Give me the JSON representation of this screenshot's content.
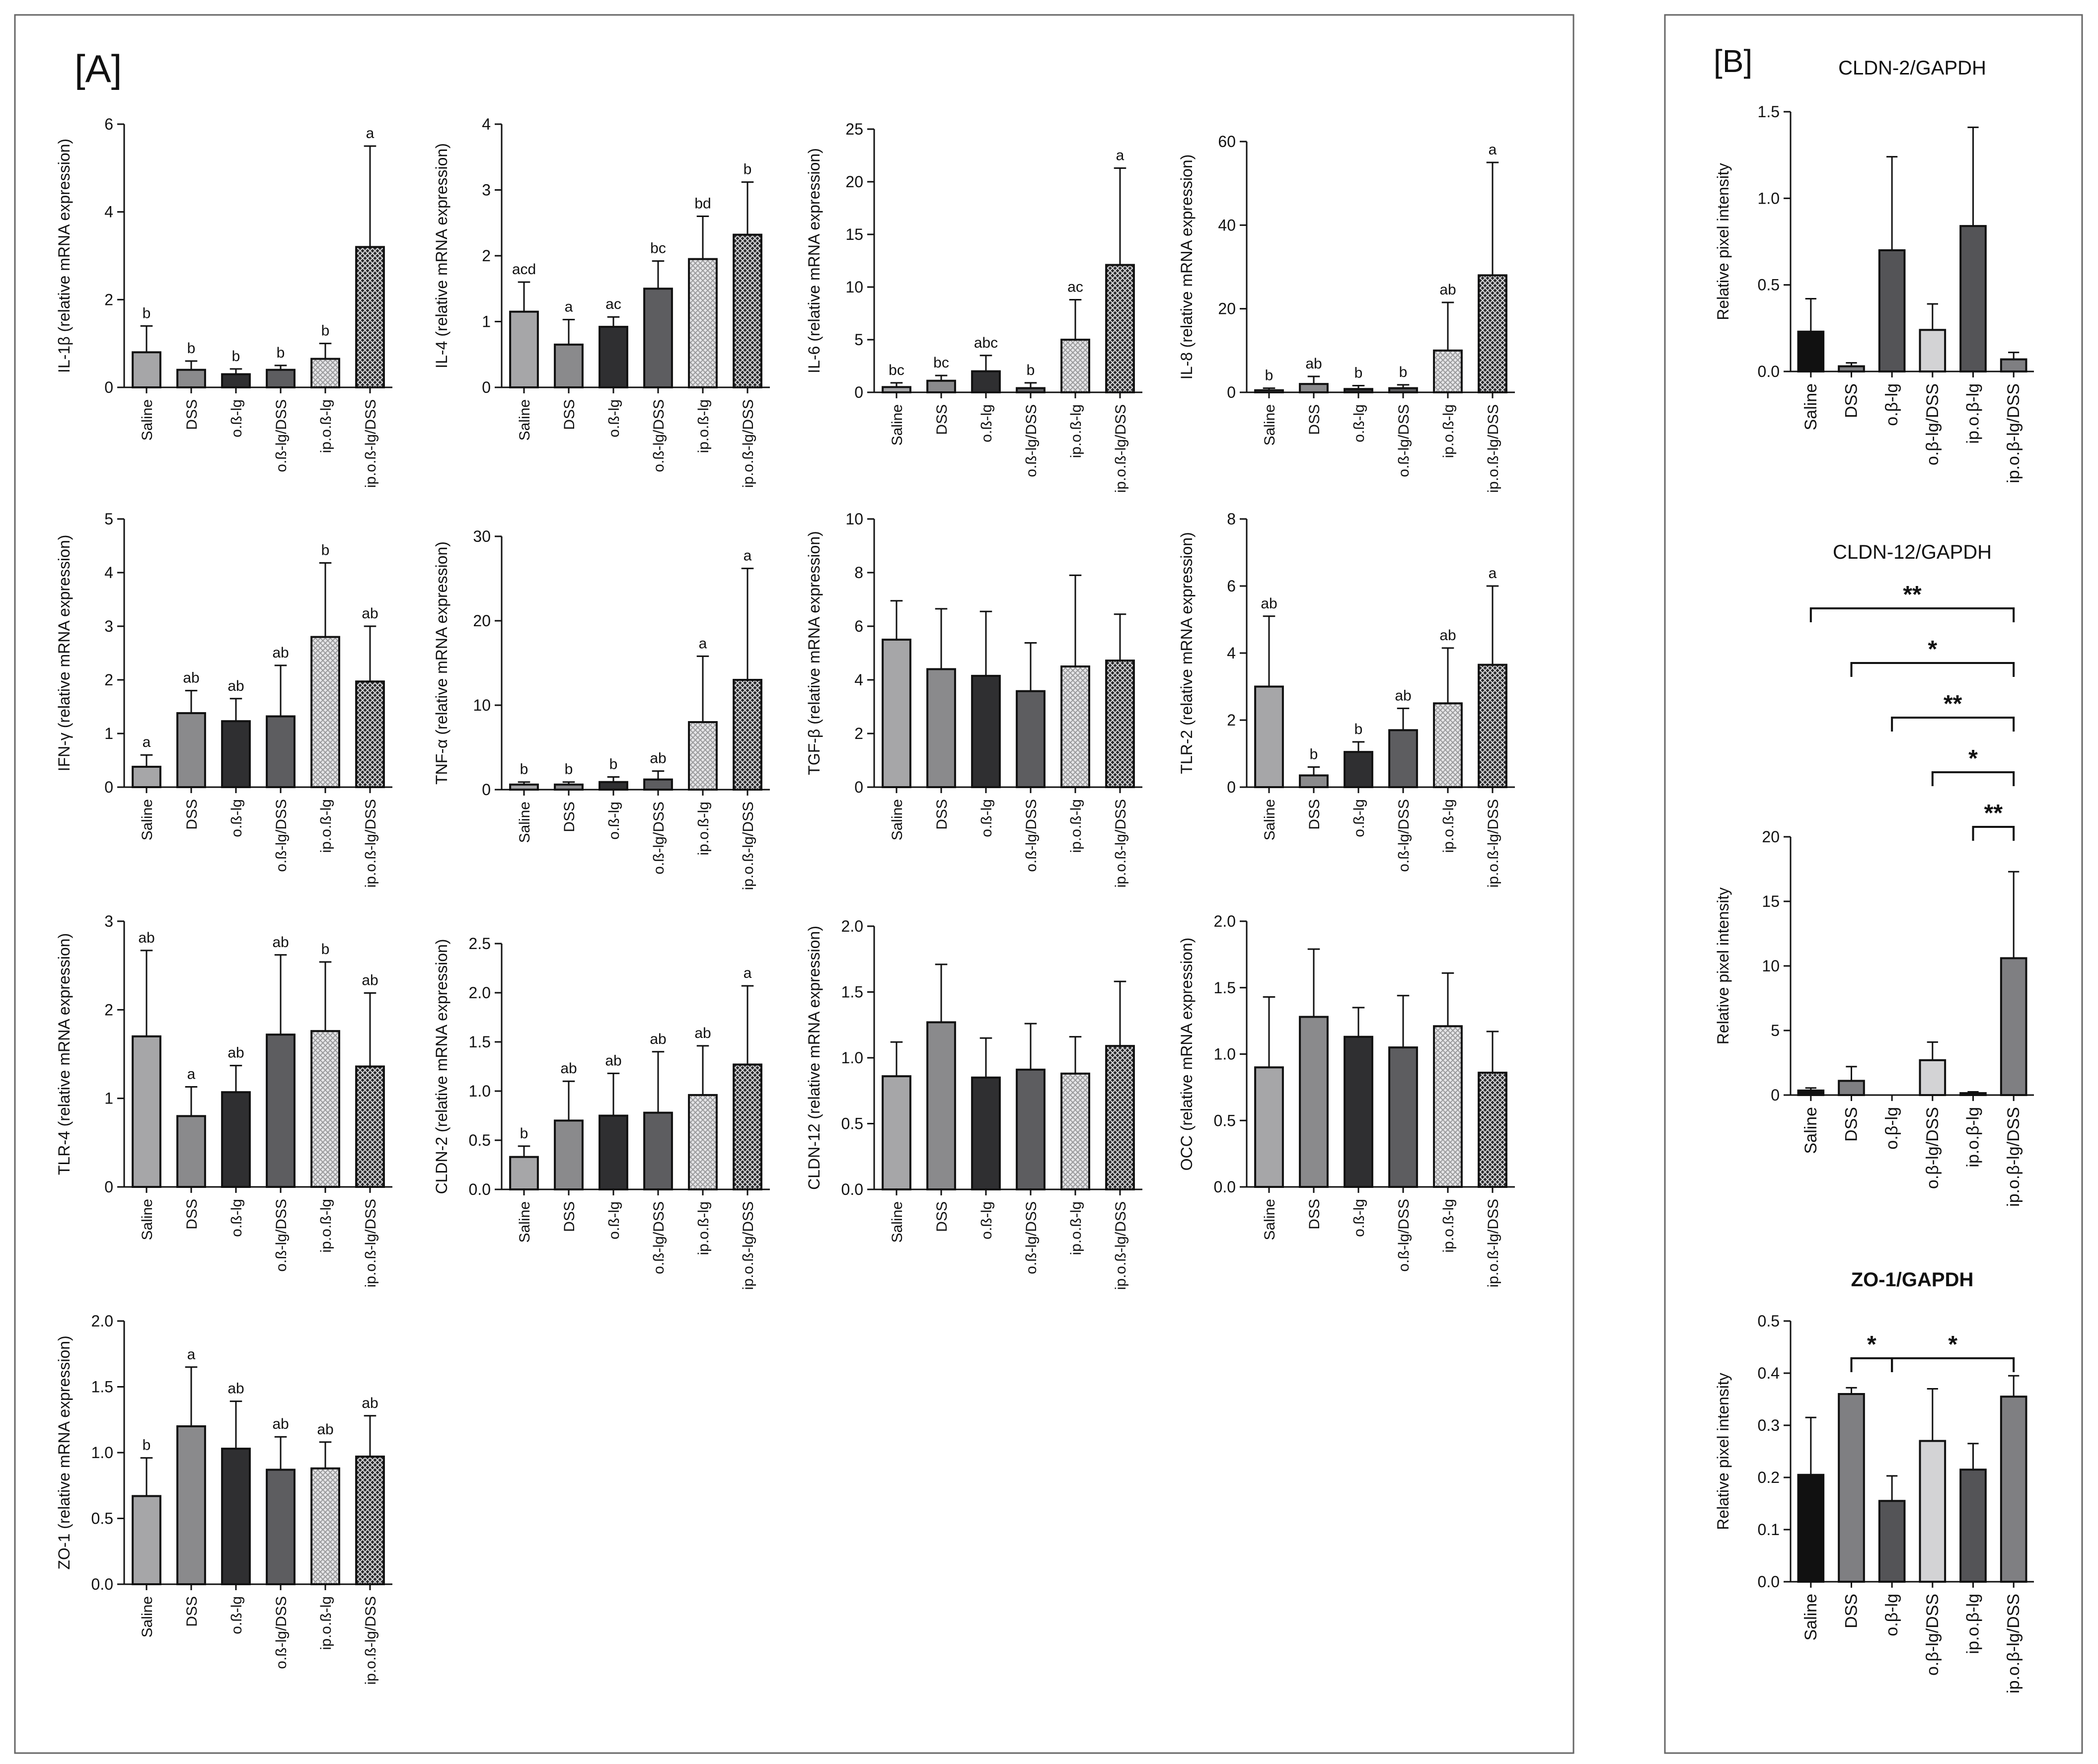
{
  "panel_a_label": "[A]",
  "panel_b_label": "[B]",
  "colors": {
    "saline_a": "#a6a6a8",
    "dss_a": "#8a8a8c",
    "ob_a": "#2f2f31",
    "obdss_a": "#5d5d60",
    "b_black": "#111111",
    "b_mid": "#7f7f82",
    "b_light": "#d3d3d5",
    "b_dark": "#545457"
  },
  "groups": [
    "Saline",
    "DSS",
    "o.ß-lg",
    "o.ß-lg/DSS",
    "ip.o.ß-lg",
    "ip.o.ß-lg/DSS"
  ],
  "chart_data": [
    {
      "id": "il1b",
      "panel": "A",
      "type": "bar",
      "title": "",
      "ylabel": "IL-1β (relative mRNA expression)",
      "ylim": [
        0,
        6
      ],
      "ticks": [
        "0",
        "2",
        "4",
        "6"
      ],
      "tick_values": [
        0,
        2,
        4,
        6
      ],
      "categories": [
        "Saline",
        "DSS",
        "o.ß-lg",
        "o.ß-lg/DSS",
        "ip.o.ß-lg",
        "ip.o.ß-lg/DSS"
      ],
      "values": [
        0.8,
        0.4,
        0.3,
        0.4,
        0.65,
        3.2
      ],
      "errors": [
        0.6,
        0.2,
        0.12,
        0.1,
        0.35,
        2.3
      ],
      "letters": [
        "b",
        "b",
        "b",
        "b",
        "b",
        "a"
      ]
    },
    {
      "id": "il4",
      "panel": "A",
      "type": "bar",
      "title": "",
      "ylabel": "IL-4 (relative mRNA expression)",
      "ylim": [
        0,
        4
      ],
      "ticks": [
        "0",
        "1",
        "2",
        "3",
        "4"
      ],
      "tick_values": [
        0,
        1,
        2,
        3,
        4
      ],
      "categories": [
        "Saline",
        "DSS",
        "o.ß-lg",
        "o.ß-lg/DSS",
        "ip.o.ß-lg",
        "ip.o.ß-lg/DSS"
      ],
      "values": [
        1.15,
        0.65,
        0.92,
        1.5,
        1.95,
        2.32
      ],
      "errors": [
        0.45,
        0.38,
        0.15,
        0.42,
        0.65,
        0.8
      ],
      "letters": [
        "acd",
        "a",
        "ac",
        "bc",
        "bd",
        "b"
      ]
    },
    {
      "id": "il6",
      "panel": "A",
      "type": "bar",
      "title": "",
      "ylabel": "IL-6 (relative mRNA expression)",
      "ylim": [
        0,
        25
      ],
      "ticks": [
        "0",
        "5",
        "10",
        "15",
        "20",
        "25"
      ],
      "tick_values": [
        0,
        5,
        10,
        15,
        20,
        25
      ],
      "categories": [
        "Saline",
        "DSS",
        "o.ß-lg",
        "o.ß-lg/DSS",
        "ip.o.ß-lg",
        "ip.o.ß-lg/DSS"
      ],
      "values": [
        0.5,
        1.1,
        2.0,
        0.4,
        5.0,
        12.1
      ],
      "errors": [
        0.4,
        0.5,
        1.5,
        0.5,
        3.8,
        9.2
      ],
      "letters": [
        "bc",
        "bc",
        "abc",
        "b",
        "ac",
        "a"
      ]
    },
    {
      "id": "il8",
      "panel": "A",
      "type": "bar",
      "title": "",
      "ylabel": "IL-8 (relative mRNA expression)",
      "ylim": [
        0,
        60
      ],
      "ticks": [
        "0",
        "20",
        "40",
        "60"
      ],
      "tick_values": [
        0,
        20,
        40,
        60
      ],
      "categories": [
        "Saline",
        "DSS",
        "o.ß-lg",
        "o.ß-lg/DSS",
        "ip.o.ß-lg",
        "ip.o.ß-lg/DSS"
      ],
      "values": [
        0.5,
        2.0,
        0.8,
        1.0,
        10.0,
        28.0
      ],
      "errors": [
        0.5,
        1.8,
        0.8,
        0.8,
        11.5,
        27.0
      ],
      "letters": [
        "b",
        "ab",
        "b",
        "b",
        "ab",
        "a"
      ]
    },
    {
      "id": "ifng",
      "panel": "A",
      "type": "bar",
      "title": "",
      "ylabel": "IFN-γ (relative mRNA expression)",
      "ylim": [
        0,
        5
      ],
      "ticks": [
        "0",
        "1",
        "2",
        "3",
        "4",
        "5"
      ],
      "tick_values": [
        0,
        1,
        2,
        3,
        4,
        5
      ],
      "categories": [
        "Saline",
        "DSS",
        "o.ß-lg",
        "o.ß-lg/DSS",
        "ip.o.ß-lg",
        "ip.o.ß-lg/DSS"
      ],
      "values": [
        0.38,
        1.38,
        1.23,
        1.32,
        2.8,
        1.97
      ],
      "errors": [
        0.22,
        0.42,
        0.42,
        0.95,
        1.38,
        1.03
      ],
      "letters": [
        "a",
        "ab",
        "ab",
        "ab",
        "b",
        "ab"
      ]
    },
    {
      "id": "tnfa",
      "panel": "A",
      "type": "bar",
      "title": "",
      "ylabel": "TNF-α (relative mRNA expression)",
      "ylim": [
        0,
        30
      ],
      "ticks": [
        "0",
        "10",
        "20",
        "30"
      ],
      "tick_values": [
        0,
        10,
        20,
        30
      ],
      "categories": [
        "Saline",
        "DSS",
        "o.ß-lg",
        "o.ß-lg/DSS",
        "ip.o.ß-lg",
        "ip.o.ß-lg/DSS"
      ],
      "values": [
        0.6,
        0.6,
        0.9,
        1.2,
        8.0,
        13.0
      ],
      "errors": [
        0.3,
        0.3,
        0.6,
        1.0,
        7.8,
        13.2
      ],
      "letters": [
        "b",
        "b",
        "b",
        "ab",
        "a",
        "a"
      ]
    },
    {
      "id": "tgfb",
      "panel": "A",
      "type": "bar",
      "title": "",
      "ylabel": "TGF-β (relative mRNA expression)",
      "ylim": [
        0,
        10
      ],
      "ticks": [
        "0",
        "2",
        "4",
        "6",
        "8",
        "10"
      ],
      "tick_values": [
        0,
        2,
        4,
        6,
        8,
        10
      ],
      "categories": [
        "Saline",
        "DSS",
        "o.ß-lg",
        "o.ß-lg/DSS",
        "ip.o.ß-lg",
        "ip.o.ß-lg/DSS"
      ],
      "values": [
        5.5,
        4.4,
        4.15,
        3.58,
        4.5,
        4.72
      ],
      "errors": [
        1.45,
        2.25,
        2.4,
        1.8,
        3.4,
        1.73
      ],
      "letters": [
        "",
        "",
        "",
        "",
        "",
        ""
      ]
    },
    {
      "id": "tlr2",
      "panel": "A",
      "type": "bar",
      "title": "",
      "ylabel": "TLR-2 (relative mRNA expression)",
      "ylim": [
        0,
        8
      ],
      "ticks": [
        "0",
        "2",
        "4",
        "6",
        "8"
      ],
      "tick_values": [
        0,
        2,
        4,
        6,
        8
      ],
      "categories": [
        "Saline",
        "DSS",
        "o.ß-lg",
        "o.ß-lg/DSS",
        "ip.o.ß-lg",
        "ip.o.ß-lg/DSS"
      ],
      "values": [
        3.0,
        0.35,
        1.05,
        1.7,
        2.5,
        3.65
      ],
      "errors": [
        2.1,
        0.25,
        0.3,
        0.65,
        1.65,
        2.35
      ],
      "letters": [
        "ab",
        "b",
        "b",
        "ab",
        "ab",
        "a"
      ]
    },
    {
      "id": "tlr4",
      "panel": "A",
      "type": "bar",
      "title": "",
      "ylabel": "TLR-4 (relative mRNA expression)",
      "ylim": [
        0,
        3
      ],
      "ticks": [
        "0",
        "1",
        "2",
        "3"
      ],
      "tick_values": [
        0,
        1,
        2,
        3
      ],
      "categories": [
        "Saline",
        "DSS",
        "o.ß-lg",
        "o.ß-lg/DSS",
        "ip.o.ß-lg",
        "ip.o.ß-lg/DSS"
      ],
      "values": [
        1.7,
        0.8,
        1.07,
        1.72,
        1.76,
        1.36
      ],
      "errors": [
        0.97,
        0.33,
        0.3,
        0.9,
        0.78,
        0.83
      ],
      "letters": [
        "ab",
        "a",
        "ab",
        "ab",
        "b",
        "ab"
      ]
    },
    {
      "id": "cldn2a",
      "panel": "A",
      "type": "bar",
      "title": "",
      "ylabel": "CLDN-2 (relative mRNA expression)",
      "ylim": [
        0,
        2.5
      ],
      "ticks": [
        "0.0",
        "0.5",
        "1.0",
        "1.5",
        "2.0",
        "2.5"
      ],
      "tick_values": [
        0,
        0.5,
        1,
        1.5,
        2,
        2.5
      ],
      "categories": [
        "Saline",
        "DSS",
        "o.ß-lg",
        "o.ß-lg/DSS",
        "ip.o.ß-lg",
        "ip.o.ß-lg/DSS"
      ],
      "values": [
        0.33,
        0.7,
        0.75,
        0.78,
        0.96,
        1.27
      ],
      "errors": [
        0.11,
        0.4,
        0.43,
        0.62,
        0.5,
        0.8
      ],
      "letters": [
        "b",
        "ab",
        "ab",
        "ab",
        "ab",
        "a"
      ]
    },
    {
      "id": "cldn12a",
      "panel": "A",
      "type": "bar",
      "title": "",
      "ylabel": "CLDN-12 (relative mRNA expression)",
      "ylim": [
        0,
        2
      ],
      "ticks": [
        "0.0",
        "0.5",
        "1.0",
        "1.5",
        "2.0"
      ],
      "tick_values": [
        0,
        0.5,
        1,
        1.5,
        2
      ],
      "categories": [
        "Saline",
        "DSS",
        "o.ß-lg",
        "o.ß-lg/DSS",
        "ip.o.ß-lg",
        "ip.o.ß-lg/DSS"
      ],
      "values": [
        0.86,
        1.27,
        0.85,
        0.91,
        0.88,
        1.09
      ],
      "errors": [
        0.26,
        0.44,
        0.3,
        0.35,
        0.28,
        0.49
      ],
      "letters": [
        "",
        "",
        "",
        "",
        "",
        ""
      ]
    },
    {
      "id": "occ",
      "panel": "A",
      "type": "bar",
      "title": "",
      "ylabel": "OCC (relative mRNA expression)",
      "ylim": [
        0,
        2
      ],
      "ticks": [
        "0.0",
        "0.5",
        "1.0",
        "1.5",
        "2.0"
      ],
      "tick_values": [
        0,
        0.5,
        1,
        1.5,
        2
      ],
      "categories": [
        "Saline",
        "DSS",
        "o.ß-lg",
        "o.ß-lg/DSS",
        "ip.o.ß-lg",
        "ip.o.ß-lg/DSS"
      ],
      "values": [
        0.9,
        1.28,
        1.13,
        1.05,
        1.21,
        0.86
      ],
      "errors": [
        0.53,
        0.51,
        0.22,
        0.39,
        0.4,
        0.31
      ],
      "letters": [
        "",
        "",
        "",
        "",
        "",
        ""
      ]
    },
    {
      "id": "zo1a",
      "panel": "A",
      "type": "bar",
      "title": "",
      "ylabel": "ZO-1 (relative mRNA expression)",
      "ylim": [
        0,
        2
      ],
      "ticks": [
        "0.0",
        "0.5",
        "1.0",
        "1.5",
        "2.0"
      ],
      "tick_values": [
        0,
        0.5,
        1,
        1.5,
        2
      ],
      "categories": [
        "Saline",
        "DSS",
        "o.ß-lg",
        "o.ß-lg/DSS",
        "ip.o.ß-lg",
        "ip.o.ß-lg/DSS"
      ],
      "values": [
        0.67,
        1.2,
        1.03,
        0.87,
        0.88,
        0.97
      ],
      "errors": [
        0.29,
        0.45,
        0.36,
        0.25,
        0.2,
        0.31
      ],
      "letters": [
        "b",
        "a",
        "ab",
        "ab",
        "ab",
        "ab"
      ]
    },
    {
      "id": "cldn2b",
      "panel": "B",
      "type": "bar",
      "title": "CLDN-2/GAPDH",
      "ylabel": "Relative pixel intensity",
      "ylim": [
        0,
        1.5
      ],
      "ticks": [
        "0.0",
        "0.5",
        "1.0",
        "1.5"
      ],
      "tick_values": [
        0,
        0.5,
        1,
        1.5
      ],
      "categories": [
        "Saline",
        "DSS",
        "o.β-lg",
        "o.β-lg/DSS",
        "ip.o.β-lg",
        "ip.o.β-lg/DSS"
      ],
      "values": [
        0.23,
        0.03,
        0.7,
        0.24,
        0.84,
        0.07
      ],
      "errors": [
        0.19,
        0.02,
        0.54,
        0.15,
        0.57,
        0.04
      ],
      "letters": [
        "",
        "",
        "",
        "",
        "",
        ""
      ]
    },
    {
      "id": "cldn12b",
      "panel": "B",
      "type": "bar",
      "title": "CLDN-12/GAPDH",
      "ylabel": "Relative pixel intensity",
      "ylim": [
        0,
        20
      ],
      "ticks": [
        "0",
        "5",
        "10",
        "15",
        "20"
      ],
      "tick_values": [
        0,
        5,
        10,
        15,
        20
      ],
      "categories": [
        "Saline",
        "DSS",
        "o.β-lg",
        "o.β-lg/DSS",
        "ip.o.β-lg",
        "ip.o.β-lg/DSS"
      ],
      "values": [
        0.35,
        1.1,
        0.0,
        2.7,
        0.15,
        10.6
      ],
      "errors": [
        0.2,
        1.1,
        0.0,
        1.4,
        0.1,
        6.7
      ],
      "letters": [
        "",
        "",
        "",
        "",
        "",
        ""
      ],
      "significance": [
        {
          "from": 0,
          "to": 5,
          "label": "**"
        },
        {
          "from": 1,
          "to": 5,
          "label": "*"
        },
        {
          "from": 2,
          "to": 5,
          "label": "**"
        },
        {
          "from": 3,
          "to": 5,
          "label": "*"
        },
        {
          "from": 4,
          "to": 5,
          "label": "**"
        }
      ]
    },
    {
      "id": "zo1b",
      "panel": "B",
      "type": "bar",
      "title": "ZO-1/GAPDH",
      "ylabel": "Relative pixel intensity",
      "ylim": [
        0,
        0.5
      ],
      "ticks": [
        "0.0",
        "0.1",
        "0.2",
        "0.3",
        "0.4",
        "0.5"
      ],
      "tick_values": [
        0,
        0.1,
        0.2,
        0.3,
        0.4,
        0.5
      ],
      "categories": [
        "Saline",
        "DSS",
        "o.β-lg",
        "o.β-lg/DSS",
        "ip.o.β-lg",
        "ip.o.β-lg/DSS"
      ],
      "values": [
        0.205,
        0.36,
        0.155,
        0.27,
        0.215,
        0.355
      ],
      "errors": [
        0.11,
        0.012,
        0.048,
        0.1,
        0.05,
        0.04
      ],
      "letters": [
        "",
        "",
        "",
        "",
        "",
        ""
      ],
      "significance": [
        {
          "from": 1,
          "to": 2,
          "label": "*"
        },
        {
          "from": 2,
          "to": 5,
          "label": "*"
        }
      ]
    }
  ]
}
